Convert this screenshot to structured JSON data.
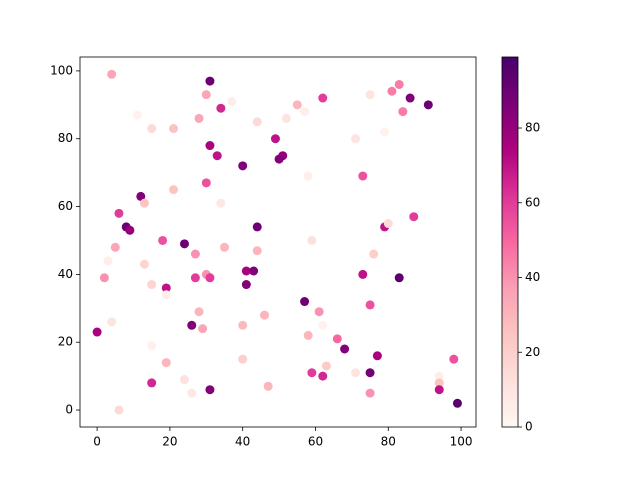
{
  "chart_data": {
    "type": "scatter",
    "colormap": "RdPu",
    "x": [
      4,
      31,
      30,
      37,
      34,
      28,
      11,
      15,
      21,
      44,
      52,
      55,
      57,
      62,
      75,
      81,
      83,
      86,
      91,
      84,
      79,
      71,
      49,
      31,
      33,
      51,
      50,
      40,
      58,
      73,
      30,
      21,
      12,
      13,
      34,
      6,
      87,
      8,
      9,
      44,
      79,
      80,
      18,
      24,
      59,
      5,
      35,
      44,
      27,
      76,
      3,
      13,
      41,
      43,
      73,
      30,
      31,
      27,
      2,
      83,
      15,
      41,
      19,
      19,
      57,
      75,
      28,
      46,
      61,
      4,
      26,
      29,
      40,
      62,
      0,
      58,
      66,
      15,
      68,
      77,
      19,
      40,
      63,
      98,
      59,
      62,
      71,
      75,
      94,
      24,
      15,
      94,
      47,
      31,
      94,
      26,
      75,
      99,
      6
    ],
    "y": [
      99,
      97,
      93,
      91,
      89,
      86,
      87,
      83,
      83,
      85,
      86,
      90,
      88,
      92,
      93,
      94,
      96,
      92,
      90,
      88,
      82,
      80,
      80,
      78,
      75,
      75,
      74,
      72,
      69,
      69,
      67,
      65,
      63,
      61,
      61,
      58,
      57,
      54,
      53,
      54,
      54,
      55,
      50,
      49,
      50,
      48,
      48,
      47,
      46,
      46,
      44,
      43,
      41,
      41,
      40,
      40,
      39,
      39,
      39,
      39,
      37,
      37,
      36,
      34,
      32,
      31,
      29,
      28,
      29,
      26,
      25,
      24,
      25,
      25,
      23,
      22,
      21,
      19,
      18,
      16,
      14,
      15,
      13,
      15,
      11,
      10,
      11,
      11,
      10,
      9,
      8,
      8,
      7,
      6,
      6,
      5,
      5,
      2,
      0
    ],
    "c": [
      35,
      90,
      35,
      5,
      65,
      35,
      3,
      15,
      25,
      15,
      10,
      30,
      5,
      60,
      10,
      45,
      45,
      85,
      90,
      45,
      3,
      10,
      70,
      75,
      70,
      80,
      85,
      85,
      5,
      55,
      55,
      25,
      85,
      25,
      8,
      60,
      60,
      90,
      80,
      90,
      70,
      15,
      55,
      90,
      12,
      35,
      30,
      30,
      40,
      20,
      5,
      18,
      75,
      85,
      70,
      40,
      60,
      60,
      40,
      95,
      18,
      85,
      70,
      5,
      90,
      55,
      30,
      30,
      40,
      10,
      85,
      35,
      28,
      3,
      75,
      30,
      50,
      4,
      85,
      75,
      30,
      20,
      22,
      55,
      60,
      65,
      10,
      88,
      5,
      12,
      65,
      25,
      30,
      85,
      70,
      8,
      40,
      95,
      15
    ],
    "xlim": [
      -4.7,
      104.1
    ],
    "ylim": [
      -5,
      104.1
    ],
    "xticks": [
      0,
      20,
      40,
      60,
      80,
      100
    ],
    "yticks": [
      0,
      20,
      40,
      60,
      80,
      100
    ],
    "clim": [
      0,
      99
    ],
    "cticks": [
      0,
      20,
      40,
      60,
      80
    ]
  }
}
